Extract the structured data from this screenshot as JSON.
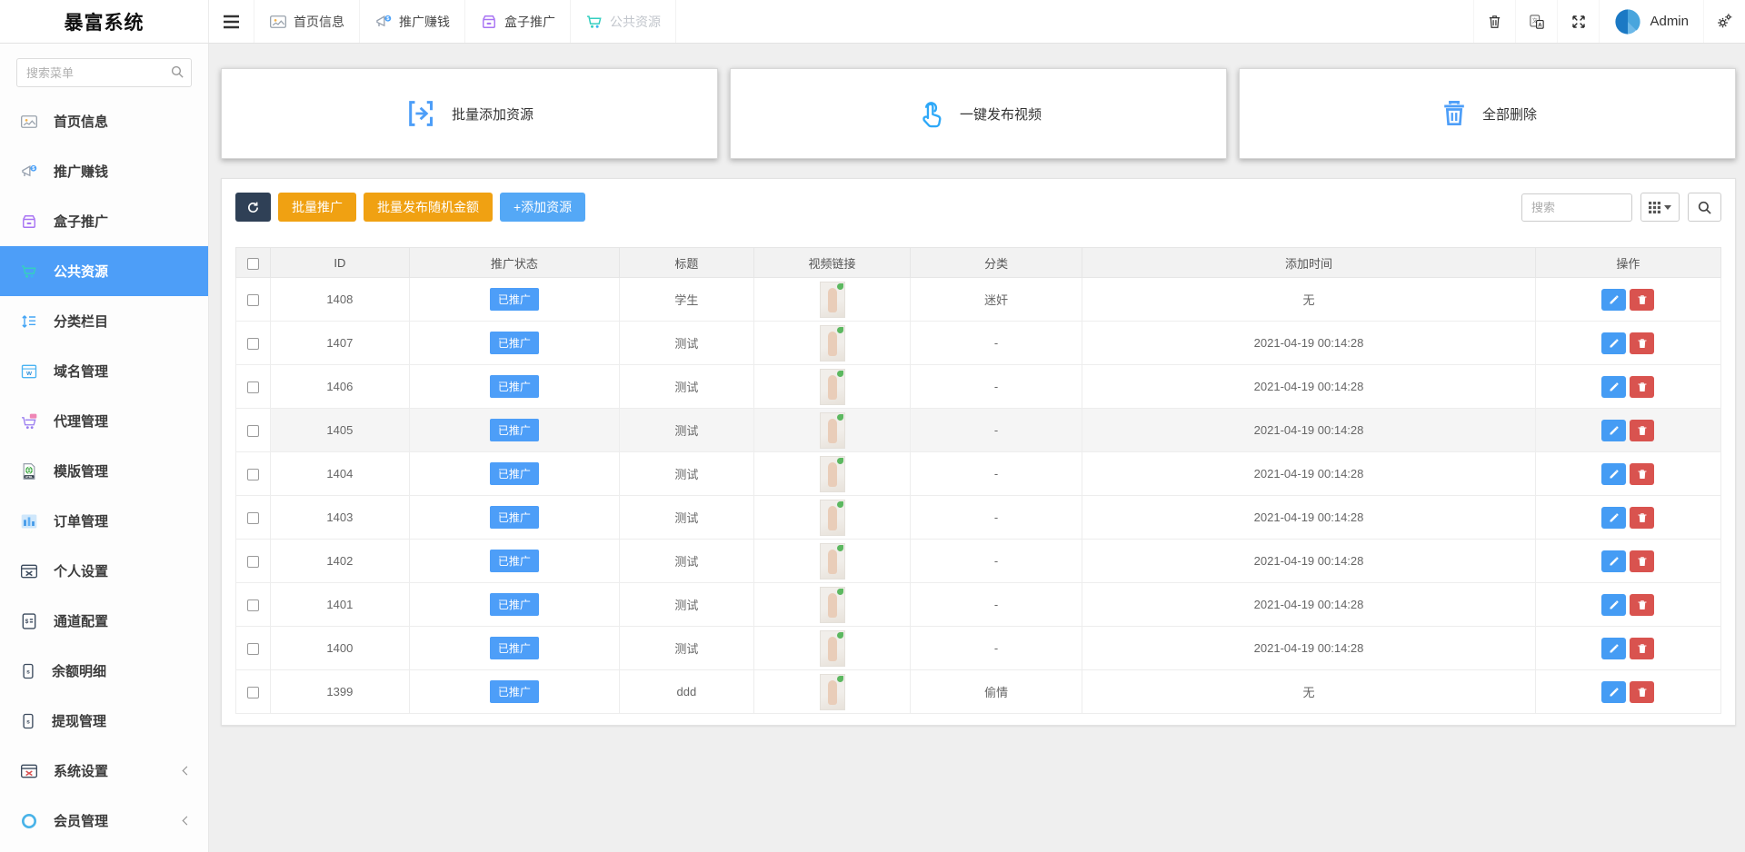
{
  "app": {
    "title": "暴富系统",
    "admin_label": "Admin"
  },
  "topbar": {
    "tabs": [
      {
        "label": "首页信息",
        "icon": "home-info",
        "active": false
      },
      {
        "label": "推广赚钱",
        "icon": "promote-earn",
        "active": false
      },
      {
        "label": "盒子推广",
        "icon": "box-promote",
        "active": false
      },
      {
        "label": "公共资源",
        "icon": "public-resource",
        "active": true
      }
    ],
    "right_icons": [
      "trash",
      "translate",
      "fullscreen"
    ],
    "settings_icon": "gears"
  },
  "sidebar": {
    "search_placeholder": "搜索菜单",
    "items": [
      {
        "label": "首页信息",
        "icon": "home-info"
      },
      {
        "label": "推广赚钱",
        "icon": "promote-earn"
      },
      {
        "label": "盒子推广",
        "icon": "box-promote"
      },
      {
        "label": "公共资源",
        "icon": "public-resource",
        "active": true
      },
      {
        "label": "分类栏目",
        "icon": "category"
      },
      {
        "label": "域名管理",
        "icon": "domain"
      },
      {
        "label": "代理管理",
        "icon": "agent"
      },
      {
        "label": "模版管理",
        "icon": "template"
      },
      {
        "label": "订单管理",
        "icon": "order"
      },
      {
        "label": "个人设置",
        "icon": "personal"
      },
      {
        "label": "通道配置",
        "icon": "channel"
      },
      {
        "label": "余额明细",
        "icon": "balance"
      },
      {
        "label": "提现管理",
        "icon": "withdraw"
      },
      {
        "label": "系统设置",
        "icon": "system",
        "collapsible": true
      },
      {
        "label": "会员管理",
        "icon": "member",
        "collapsible": true
      }
    ]
  },
  "quick_actions": [
    {
      "label": "批量添加资源",
      "icon": "batch-add"
    },
    {
      "label": "一键发布视频",
      "icon": "one-key-publish"
    },
    {
      "label": "全部删除",
      "icon": "delete-all"
    }
  ],
  "toolbar": {
    "buttons": [
      {
        "label": "批量推广",
        "style": "orange",
        "name": "batch-promote-button"
      },
      {
        "label": "批量发布随机金额",
        "style": "orange",
        "name": "batch-publish-random-amount-button"
      },
      {
        "label": "+添加资源",
        "style": "blue",
        "name": "add-resource-button"
      }
    ],
    "search_placeholder": "搜索"
  },
  "table": {
    "headers": [
      "ID",
      "推广状态",
      "标题",
      "视频链接",
      "分类",
      "添加时间",
      "操作"
    ],
    "status_badge": "已推广",
    "highlighted_row_id": "1405",
    "rows": [
      {
        "id": "1408",
        "title": "学生",
        "category": "迷奸",
        "time": "无"
      },
      {
        "id": "1407",
        "title": "测试",
        "category": "-",
        "time": "2021-04-19 00:14:28"
      },
      {
        "id": "1406",
        "title": "测试",
        "category": "-",
        "time": "2021-04-19 00:14:28"
      },
      {
        "id": "1405",
        "title": "测试",
        "category": "-",
        "time": "2021-04-19 00:14:28"
      },
      {
        "id": "1404",
        "title": "测试",
        "category": "-",
        "time": "2021-04-19 00:14:28"
      },
      {
        "id": "1403",
        "title": "测试",
        "category": "-",
        "time": "2021-04-19 00:14:28"
      },
      {
        "id": "1402",
        "title": "测试",
        "category": "-",
        "time": "2021-04-19 00:14:28"
      },
      {
        "id": "1401",
        "title": "测试",
        "category": "-",
        "time": "2021-04-19 00:14:28"
      },
      {
        "id": "1400",
        "title": "测试",
        "category": "-",
        "time": "2021-04-19 00:14:28"
      },
      {
        "id": "1399",
        "title": "ddd",
        "category": "偷情",
        "time": "无"
      }
    ]
  },
  "colors": {
    "accent_blue": "#4D9EF8",
    "button_orange": "#F0A112",
    "button_navy": "#2F4056",
    "delete_red": "#D9534F",
    "add_blue": "#54A8F6",
    "active_tab_text": "#C2C6CC",
    "page_background": "#EFEFEF"
  }
}
